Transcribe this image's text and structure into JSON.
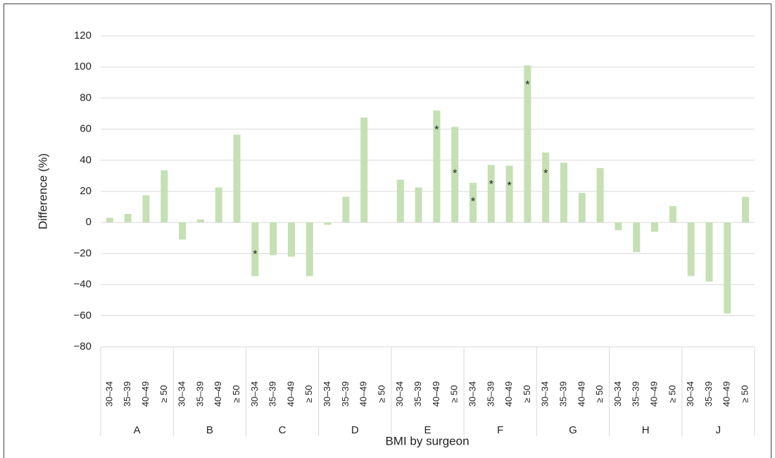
{
  "chart_data": {
    "type": "bar",
    "ylabel": "Difference (%)",
    "xlabel": "BMI by surgeon",
    "groups": [
      "A",
      "B",
      "C",
      "D",
      "E",
      "F",
      "G",
      "H",
      "J"
    ],
    "categories": [
      "30–34",
      "35–39",
      "40–49",
      "≥ 50",
      "30–34",
      "35–39",
      "40–49",
      "≥ 50",
      "30–34",
      "35–39",
      "40–49",
      "≥ 50",
      "30–34",
      "35–39",
      "40–49",
      "≥ 50",
      "30–34",
      "35–39",
      "40–49",
      "≥ 50",
      "30–34",
      "35–39",
      "40–49",
      "≥ 50",
      "30–34",
      "35–39",
      "40–49",
      "≥ 50",
      "30–34",
      "35–39",
      "40–49",
      "≥ 50",
      "30–34",
      "35–39",
      "40–49",
      "≥ 50"
    ],
    "values": [
      3,
      5.5,
      17.5,
      33.5,
      -11,
      2,
      22.5,
      56.5,
      -34.5,
      -21,
      -22,
      -34.5,
      -1.5,
      16.5,
      67.5,
      null,
      27.5,
      22.5,
      72,
      61.5,
      25.5,
      37,
      36.5,
      101,
      45,
      38.5,
      19,
      35,
      -5,
      -19,
      -6,
      10.5,
      -34.5,
      -38,
      -58.5,
      16.5
    ],
    "color": "#c5e0b4",
    "annotations": {
      "text": "*",
      "values": [
        null,
        null,
        null,
        null,
        null,
        null,
        null,
        null,
        -19,
        null,
        null,
        null,
        null,
        null,
        null,
        null,
        null,
        null,
        61,
        33,
        15,
        26,
        25,
        90,
        33,
        null,
        null,
        null,
        null,
        null,
        null,
        null,
        null,
        null,
        null,
        null
      ]
    },
    "ylim": [
      -80,
      120
    ],
    "yticks": [
      {
        "value": -80,
        "label": "−80"
      },
      {
        "value": -60,
        "label": "−60"
      },
      {
        "value": -40,
        "label": "−40"
      },
      {
        "value": -20,
        "label": "−20"
      },
      0,
      20,
      40,
      60,
      80,
      100,
      120
    ],
    "grid": true
  }
}
